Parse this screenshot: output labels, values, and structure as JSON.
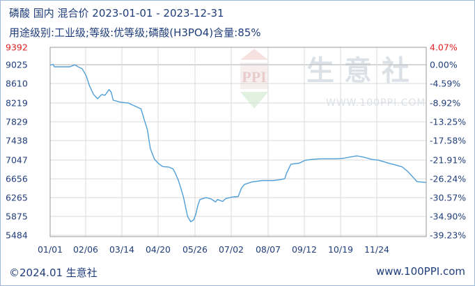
{
  "chart_data": {
    "type": "line",
    "title": "磷酸 国内 混合价 2023-01-01 - 2023-12-31",
    "subtitle": "用途级别:工业级;等级:优等级;磷酸(H3PO4)含量:85%",
    "y_ticks_left": [
      "9392",
      "9025",
      "8610",
      "8219",
      "7829",
      "7438",
      "7047",
      "6656",
      "6265",
      "5875",
      "5484"
    ],
    "y_ticks_right": [
      "4.07%",
      "0.00%",
      "-4.59%",
      "-8.92%",
      "-13.25%",
      "-17.58%",
      "-21.91%",
      "-26.24%",
      "-30.57%",
      "-34.90%",
      "-39.23%"
    ],
    "x_ticks": [
      "01/01",
      "02/06",
      "03/14",
      "04/20",
      "05/26",
      "07/02",
      "08/07",
      "09/12",
      "10/19",
      "11/24"
    ],
    "ylim": [
      5484,
      9392
    ],
    "xlim": [
      "2023-01-01",
      "2023-12-31"
    ],
    "grid": true,
    "series": [
      {
        "color": "#4f9ed6",
        "points": [
          [
            "2023-01-01",
            9025
          ],
          [
            "2023-01-04",
            9040
          ],
          [
            "2023-01-05",
            8990
          ],
          [
            "2023-01-20",
            8990
          ],
          [
            "2023-01-25",
            9030
          ],
          [
            "2023-01-28",
            8990
          ],
          [
            "2023-02-01",
            8950
          ],
          [
            "2023-02-05",
            8800
          ],
          [
            "2023-02-08",
            8600
          ],
          [
            "2023-02-12",
            8420
          ],
          [
            "2023-02-16",
            8330
          ],
          [
            "2023-02-20",
            8420
          ],
          [
            "2023-02-23",
            8400
          ],
          [
            "2023-02-27",
            8520
          ],
          [
            "2023-03-01",
            8470
          ],
          [
            "2023-03-03",
            8300
          ],
          [
            "2023-03-10",
            8260
          ],
          [
            "2023-03-18",
            8240
          ],
          [
            "2023-03-25",
            8170
          ],
          [
            "2023-03-30",
            8120
          ],
          [
            "2023-04-02",
            7900
          ],
          [
            "2023-04-05",
            7700
          ],
          [
            "2023-04-08",
            7300
          ],
          [
            "2023-04-12",
            7080
          ],
          [
            "2023-04-16",
            6990
          ],
          [
            "2023-04-20",
            6930
          ],
          [
            "2023-04-26",
            6920
          ],
          [
            "2023-04-30",
            6880
          ],
          [
            "2023-05-02",
            6800
          ],
          [
            "2023-05-05",
            6650
          ],
          [
            "2023-05-08",
            6450
          ],
          [
            "2023-05-10",
            6300
          ],
          [
            "2023-05-14",
            5900
          ],
          [
            "2023-05-17",
            5790
          ],
          [
            "2023-05-20",
            5830
          ],
          [
            "2023-05-22",
            5950
          ],
          [
            "2023-05-24",
            6130
          ],
          [
            "2023-05-26",
            6250
          ],
          [
            "2023-06-01",
            6290
          ],
          [
            "2023-06-06",
            6260
          ],
          [
            "2023-06-10",
            6200
          ],
          [
            "2023-06-12",
            6250
          ],
          [
            "2023-06-17",
            6210
          ],
          [
            "2023-06-20",
            6270
          ],
          [
            "2023-06-26",
            6300
          ],
          [
            "2023-07-02",
            6310
          ],
          [
            "2023-07-05",
            6480
          ],
          [
            "2023-07-08",
            6560
          ],
          [
            "2023-07-15",
            6610
          ],
          [
            "2023-07-25",
            6640
          ],
          [
            "2023-08-05",
            6640
          ],
          [
            "2023-08-12",
            6660
          ],
          [
            "2023-08-16",
            6680
          ],
          [
            "2023-08-18",
            6800
          ],
          [
            "2023-08-22",
            6980
          ],
          [
            "2023-08-30",
            7000
          ],
          [
            "2023-09-05",
            7060
          ],
          [
            "2023-09-12",
            7080
          ],
          [
            "2023-09-20",
            7090
          ],
          [
            "2023-10-05",
            7090
          ],
          [
            "2023-10-12",
            7100
          ],
          [
            "2023-10-19",
            7130
          ],
          [
            "2023-10-25",
            7150
          ],
          [
            "2023-11-01",
            7120
          ],
          [
            "2023-11-08",
            7080
          ],
          [
            "2023-11-15",
            7060
          ],
          [
            "2023-11-20",
            7030
          ],
          [
            "2023-11-26",
            6990
          ],
          [
            "2023-12-02",
            6960
          ],
          [
            "2023-12-08",
            6920
          ],
          [
            "2023-12-13",
            6830
          ],
          [
            "2023-12-17",
            6740
          ],
          [
            "2023-12-22",
            6620
          ],
          [
            "2023-12-31",
            6600
          ]
        ]
      }
    ]
  },
  "watermark": {
    "logo_text": "PPI",
    "brand_text": "生 意 社",
    "url_text": "WWW.100PPI.COM"
  },
  "footer": {
    "left": "©2024.01 生意社",
    "right": "www.100PPI.com"
  },
  "colors": {
    "line": "#4f9ed6",
    "grid": "#d6d6d6",
    "text": "#1f3d7a",
    "top_value": "#e02020"
  }
}
